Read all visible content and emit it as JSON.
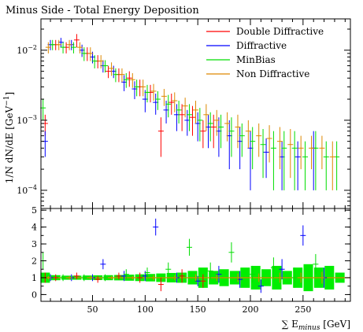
{
  "chart_data": {
    "type": "scatter",
    "title": "Minus Side - Total Energy Deposition",
    "xlabel": "∑ E_minus [GeV]",
    "ylabel": "1/N dN/dE [GeV^-1]",
    "xlim": [
      1,
      295
    ],
    "main_panel": {
      "yscale": "log",
      "ylim": [
        5.5e-05,
        0.028
      ],
      "yticks": [
        {
          "value": 0.0001,
          "label": "10^-4"
        },
        {
          "value": 0.001,
          "label": "10^-3"
        },
        {
          "value": 0.01,
          "label": "10^-2"
        }
      ]
    },
    "ratio_panel": {
      "yscale": "linear",
      "ylim": [
        -0.4,
        5.1
      ],
      "yticks": [
        0,
        1,
        2,
        3,
        4,
        5
      ]
    },
    "xticks": [
      50,
      100,
      150,
      200,
      250
    ],
    "legend_position": "top-right",
    "series": [
      {
        "name": "Double Diffractive",
        "color": "#ff0000",
        "points": [
          [
            5,
            0.0009,
            0.0003
          ],
          [
            15,
            0.012,
            0.002
          ],
          [
            25,
            0.011,
            0.002
          ],
          [
            35,
            0.014,
            0.003
          ],
          [
            45,
            0.009,
            0.002
          ],
          [
            55,
            0.007,
            0.0015
          ],
          [
            65,
            0.005,
            0.001
          ],
          [
            75,
            0.0045,
            0.001
          ],
          [
            85,
            0.004,
            0.001
          ],
          [
            95,
            0.003,
            0.0008
          ],
          [
            105,
            0.0025,
            0.0007
          ],
          [
            115,
            0.0007,
            0.0004
          ],
          [
            125,
            0.0018,
            0.0006
          ],
          [
            135,
            0.0012,
            0.0005
          ],
          [
            145,
            0.0011,
            0.0005
          ],
          [
            155,
            0.0007,
            0.0003
          ],
          [
            165,
            0.0008,
            0.0004
          ]
        ],
        "ratio": [
          [
            5,
            1.0,
            0.3
          ],
          [
            15,
            1.0,
            0.2
          ],
          [
            35,
            1.1,
            0.2
          ],
          [
            55,
            0.9,
            0.2
          ],
          [
            75,
            1.1,
            0.2
          ],
          [
            95,
            1.0,
            0.3
          ],
          [
            115,
            0.6,
            0.4
          ],
          [
            135,
            1.1,
            0.4
          ],
          [
            155,
            0.8,
            0.4
          ]
        ]
      },
      {
        "name": "Diffractive",
        "color": "#0000ff",
        "points": [
          [
            5,
            0.0005,
            0.0002
          ],
          [
            10,
            0.012,
            0.002
          ],
          [
            20,
            0.013,
            0.002
          ],
          [
            30,
            0.012,
            0.002
          ],
          [
            40,
            0.01,
            0.002
          ],
          [
            50,
            0.008,
            0.0015
          ],
          [
            60,
            0.006,
            0.0012
          ],
          [
            70,
            0.005,
            0.001
          ],
          [
            80,
            0.0035,
            0.0009
          ],
          [
            90,
            0.0028,
            0.0008
          ],
          [
            100,
            0.002,
            0.0007
          ],
          [
            110,
            0.0018,
            0.0006
          ],
          [
            120,
            0.0014,
            0.0005
          ],
          [
            130,
            0.0012,
            0.0005
          ],
          [
            140,
            0.001,
            0.0004
          ],
          [
            150,
            0.0009,
            0.0004
          ],
          [
            160,
            0.0008,
            0.0004
          ],
          [
            170,
            0.0007,
            0.0004
          ],
          [
            180,
            0.0006,
            0.0004
          ],
          [
            190,
            0.0005,
            0.0003
          ],
          [
            200,
            0.0004,
            0.0003
          ],
          [
            215,
            0.00035,
            0.0002
          ],
          [
            230,
            0.0003,
            0.0002
          ],
          [
            245,
            0.0003,
            0.0002
          ],
          [
            260,
            0.0004,
            0.0003
          ]
        ],
        "ratio": [
          [
            10,
            1.0,
            0.2
          ],
          [
            30,
            1.0,
            0.2
          ],
          [
            50,
            1.0,
            0.2
          ],
          [
            60,
            1.8,
            0.3
          ],
          [
            80,
            1.1,
            0.3
          ],
          [
            100,
            1.1,
            0.3
          ],
          [
            110,
            4.0,
            0.5
          ],
          [
            130,
            1.0,
            0.3
          ],
          [
            150,
            0.8,
            0.3
          ],
          [
            170,
            1.2,
            0.5
          ],
          [
            190,
            0.9,
            0.5
          ],
          [
            210,
            0.5,
            0.4
          ],
          [
            230,
            1.5,
            0.6
          ],
          [
            250,
            3.5,
            0.6
          ],
          [
            270,
            1.0,
            0.6
          ]
        ]
      },
      {
        "name": "MinBias",
        "color": "#00dd00",
        "points": [
          [
            3,
            0.0015,
            0.0005
          ],
          [
            12,
            0.012,
            0.002
          ],
          [
            22,
            0.011,
            0.002
          ],
          [
            32,
            0.011,
            0.002
          ],
          [
            42,
            0.009,
            0.002
          ],
          [
            52,
            0.007,
            0.0015
          ],
          [
            62,
            0.006,
            0.0012
          ],
          [
            72,
            0.0045,
            0.001
          ],
          [
            82,
            0.0038,
            0.0009
          ],
          [
            92,
            0.003,
            0.0008
          ],
          [
            102,
            0.0025,
            0.0007
          ],
          [
            112,
            0.002,
            0.0006
          ],
          [
            122,
            0.0017,
            0.0006
          ],
          [
            132,
            0.0014,
            0.0005
          ],
          [
            142,
            0.0012,
            0.0005
          ],
          [
            152,
            0.001,
            0.0005
          ],
          [
            162,
            0.0009,
            0.0004
          ],
          [
            172,
            0.0008,
            0.0004
          ],
          [
            182,
            0.0007,
            0.0004
          ],
          [
            192,
            0.0006,
            0.0003
          ],
          [
            202,
            0.0005,
            0.0003
          ],
          [
            212,
            0.00045,
            0.0003
          ],
          [
            222,
            0.0004,
            0.0003
          ],
          [
            232,
            0.0004,
            0.0003
          ],
          [
            242,
            0.0004,
            0.0003
          ],
          [
            252,
            0.0003,
            0.0002
          ],
          [
            262,
            0.0004,
            0.0003
          ],
          [
            272,
            0.0003,
            0.0002
          ],
          [
            282,
            0.0003,
            0.0002
          ]
        ],
        "ratio": [
          [
            3,
            2.0,
            0.5
          ],
          [
            22,
            1.0,
            0.2
          ],
          [
            42,
            1.0,
            0.2
          ],
          [
            62,
            1.0,
            0.2
          ],
          [
            82,
            1.2,
            0.3
          ],
          [
            102,
            1.3,
            0.3
          ],
          [
            122,
            1.5,
            0.4
          ],
          [
            142,
            2.8,
            0.5
          ],
          [
            162,
            1.4,
            0.5
          ],
          [
            182,
            2.5,
            0.6
          ],
          [
            202,
            1.2,
            0.5
          ],
          [
            222,
            1.6,
            0.6
          ],
          [
            242,
            1.0,
            0.6
          ],
          [
            262,
            1.8,
            0.6
          ]
        ]
      },
      {
        "name": "Non Diffractive",
        "color": "#dd8800",
        "points": [
          [
            8,
            0.011,
            0.002
          ],
          [
            18,
            0.012,
            0.002
          ],
          [
            28,
            0.012,
            0.002
          ],
          [
            38,
            0.011,
            0.002
          ],
          [
            48,
            0.009,
            0.002
          ],
          [
            58,
            0.007,
            0.0015
          ],
          [
            68,
            0.0055,
            0.0012
          ],
          [
            78,
            0.0045,
            0.001
          ],
          [
            88,
            0.0038,
            0.0009
          ],
          [
            98,
            0.003,
            0.0008
          ],
          [
            108,
            0.0026,
            0.0007
          ],
          [
            118,
            0.0022,
            0.0006
          ],
          [
            128,
            0.0019,
            0.0006
          ],
          [
            138,
            0.0016,
            0.0005
          ],
          [
            148,
            0.0014,
            0.0005
          ],
          [
            158,
            0.0012,
            0.0005
          ],
          [
            168,
            0.001,
            0.0004
          ],
          [
            178,
            0.0009,
            0.0004
          ],
          [
            188,
            0.0008,
            0.0004
          ],
          [
            198,
            0.0007,
            0.0003
          ],
          [
            208,
            0.0006,
            0.0003
          ],
          [
            218,
            0.00055,
            0.0003
          ],
          [
            228,
            0.0005,
            0.0003
          ],
          [
            238,
            0.00045,
            0.0003
          ],
          [
            248,
            0.0004,
            0.0002
          ],
          [
            258,
            0.0004,
            0.0002
          ],
          [
            268,
            0.0004,
            0.0002
          ],
          [
            278,
            0.0003,
            0.0002
          ]
        ],
        "ratio": [
          [
            8,
            1.0,
            0.1
          ],
          [
            28,
            1.0,
            0.1
          ],
          [
            48,
            1.0,
            0.1
          ],
          [
            68,
            1.0,
            0.1
          ],
          [
            88,
            1.0,
            0.1
          ],
          [
            108,
            1.0,
            0.15
          ],
          [
            128,
            1.0,
            0.15
          ],
          [
            148,
            1.0,
            0.2
          ],
          [
            168,
            1.0,
            0.2
          ],
          [
            188,
            1.0,
            0.25
          ],
          [
            208,
            1.0,
            0.25
          ],
          [
            228,
            1.0,
            0.3
          ],
          [
            248,
            1.0,
            0.3
          ],
          [
            268,
            1.0,
            0.35
          ]
        ]
      }
    ],
    "ratio_band": {
      "color": "#00ee00",
      "bins": [
        [
          5,
          0.7,
          1.3
        ],
        [
          15,
          0.85,
          1.15
        ],
        [
          25,
          0.88,
          1.12
        ],
        [
          35,
          0.88,
          1.12
        ],
        [
          45,
          0.87,
          1.13
        ],
        [
          55,
          0.86,
          1.14
        ],
        [
          65,
          0.85,
          1.15
        ],
        [
          75,
          0.84,
          1.16
        ],
        [
          85,
          0.82,
          1.18
        ],
        [
          95,
          0.8,
          1.2
        ],
        [
          105,
          0.78,
          1.22
        ],
        [
          115,
          0.75,
          1.25
        ],
        [
          125,
          0.72,
          1.28
        ],
        [
          135,
          0.7,
          1.3
        ],
        [
          145,
          0.6,
          1.4
        ],
        [
          155,
          0.4,
          1.6
        ],
        [
          165,
          0.6,
          1.4
        ],
        [
          175,
          0.5,
          1.5
        ],
        [
          185,
          0.6,
          1.4
        ],
        [
          195,
          0.4,
          1.6
        ],
        [
          205,
          0.3,
          1.7
        ],
        [
          215,
          0.5,
          1.5
        ],
        [
          225,
          0.3,
          1.7
        ],
        [
          235,
          0.6,
          1.4
        ],
        [
          245,
          0.4,
          1.6
        ],
        [
          255,
          0.2,
          1.8
        ],
        [
          265,
          0.4,
          1.6
        ],
        [
          275,
          0.3,
          1.7
        ],
        [
          285,
          0.7,
          1.3
        ]
      ]
    }
  }
}
